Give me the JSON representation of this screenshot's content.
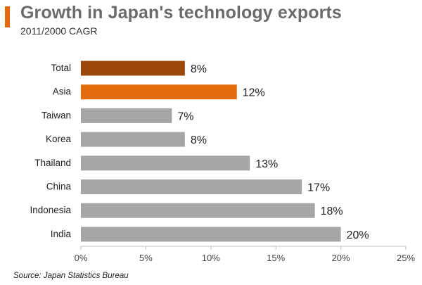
{
  "header": {
    "title": "Growth in Japan's technology exports",
    "subtitle": "2011/2000 CAGR",
    "accent_color": "#e36c0a"
  },
  "footer": {
    "source": "Source: Japan Statistics Bureau"
  },
  "chart_data": {
    "type": "bar",
    "orientation": "horizontal",
    "categories": [
      "Total",
      "Asia",
      "Taiwan",
      "Korea",
      "Thailand",
      "China",
      "Indonesia",
      "India"
    ],
    "values": [
      8,
      12,
      7,
      8,
      13,
      17,
      18,
      20
    ],
    "data_labels": [
      "8%",
      "12%",
      "7%",
      "8%",
      "13%",
      "17%",
      "18%",
      "20%"
    ],
    "bar_colors": [
      "#9c4a0c",
      "#e36c0a",
      "#a6a6a6",
      "#a6a6a6",
      "#a6a6a6",
      "#a6a6a6",
      "#a6a6a6",
      "#a6a6a6"
    ],
    "xlim": [
      0,
      25
    ],
    "xticks": [
      0,
      5,
      10,
      15,
      20,
      25
    ],
    "xtick_labels": [
      "0%",
      "5%",
      "10%",
      "15%",
      "20%",
      "25%"
    ],
    "grid": false,
    "legend": "none"
  }
}
